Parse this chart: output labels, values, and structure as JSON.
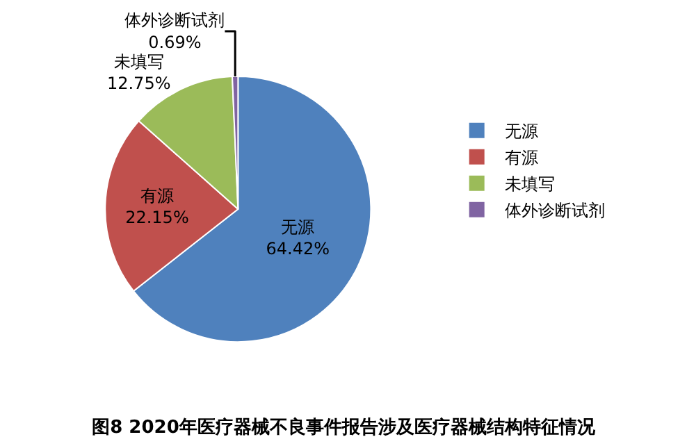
{
  "chart_data": {
    "type": "pie",
    "title": "图8 2020年医疗器械不良事件报告涉及医疗器械结构特征情况",
    "categories": [
      "无源",
      "有源",
      "未填写",
      "体外诊断试剂"
    ],
    "values": [
      64.42,
      22.15,
      12.75,
      0.69
    ],
    "value_labels": [
      "64.42%",
      "22.15%",
      "12.75%",
      "0.69%"
    ],
    "colors": [
      "#4f81bd",
      "#c0504d",
      "#9bbb59",
      "#8064a2"
    ],
    "legend": "right"
  }
}
